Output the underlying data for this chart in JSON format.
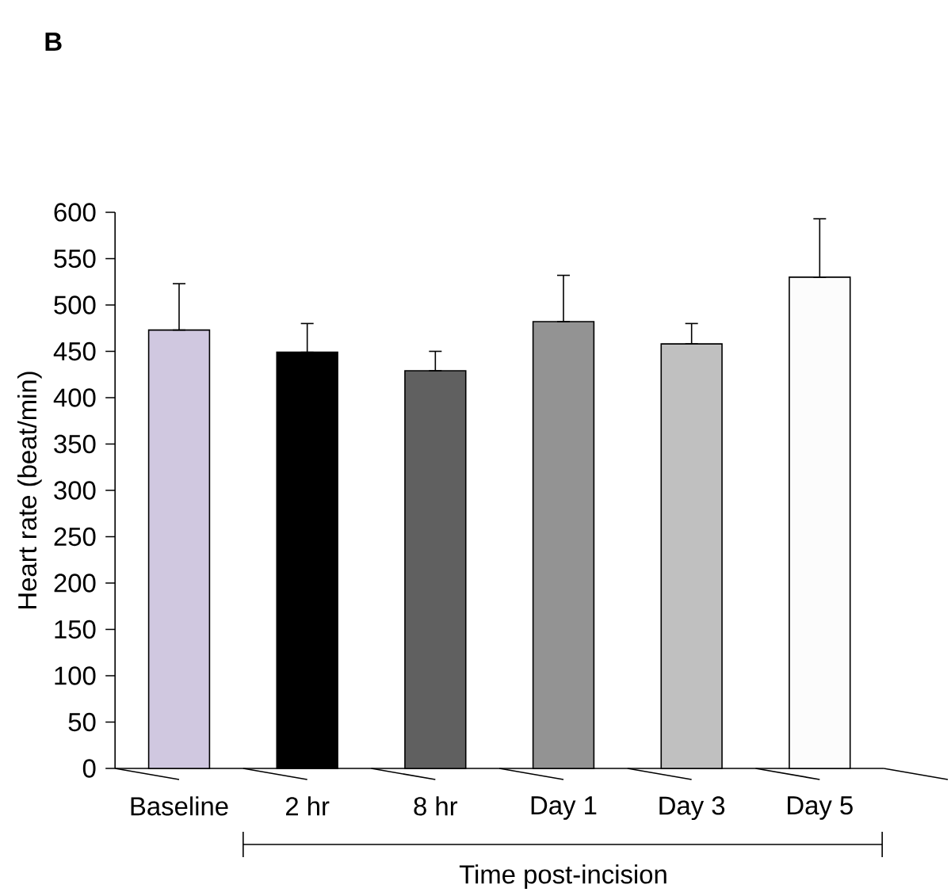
{
  "chart_data": {
    "type": "bar",
    "annotations": [
      "B"
    ],
    "ylabel": "Heart rate (beat/min)",
    "xlabel": "Time post-incision",
    "categories": [
      "Baseline",
      "2 hr",
      "8 hr",
      "Day 1",
      "Day 3",
      "Day 5"
    ],
    "values": [
      473,
      449,
      429,
      482,
      458,
      530
    ],
    "colors": [
      "#d0c8e0",
      "#000000",
      "#606060",
      "#939393",
      "#c0c0c0",
      "#fcfcfc"
    ],
    "errors": [
      [
        473,
        523
      ],
      [
        449,
        480
      ],
      [
        429,
        450
      ],
      [
        482,
        532
      ],
      [
        458,
        480
      ],
      [
        530,
        593
      ]
    ],
    "ylim": [
      0,
      600
    ],
    "yticks": [
      0,
      50,
      100,
      150,
      200,
      250,
      300,
      350,
      400,
      450,
      500,
      550,
      600
    ]
  }
}
